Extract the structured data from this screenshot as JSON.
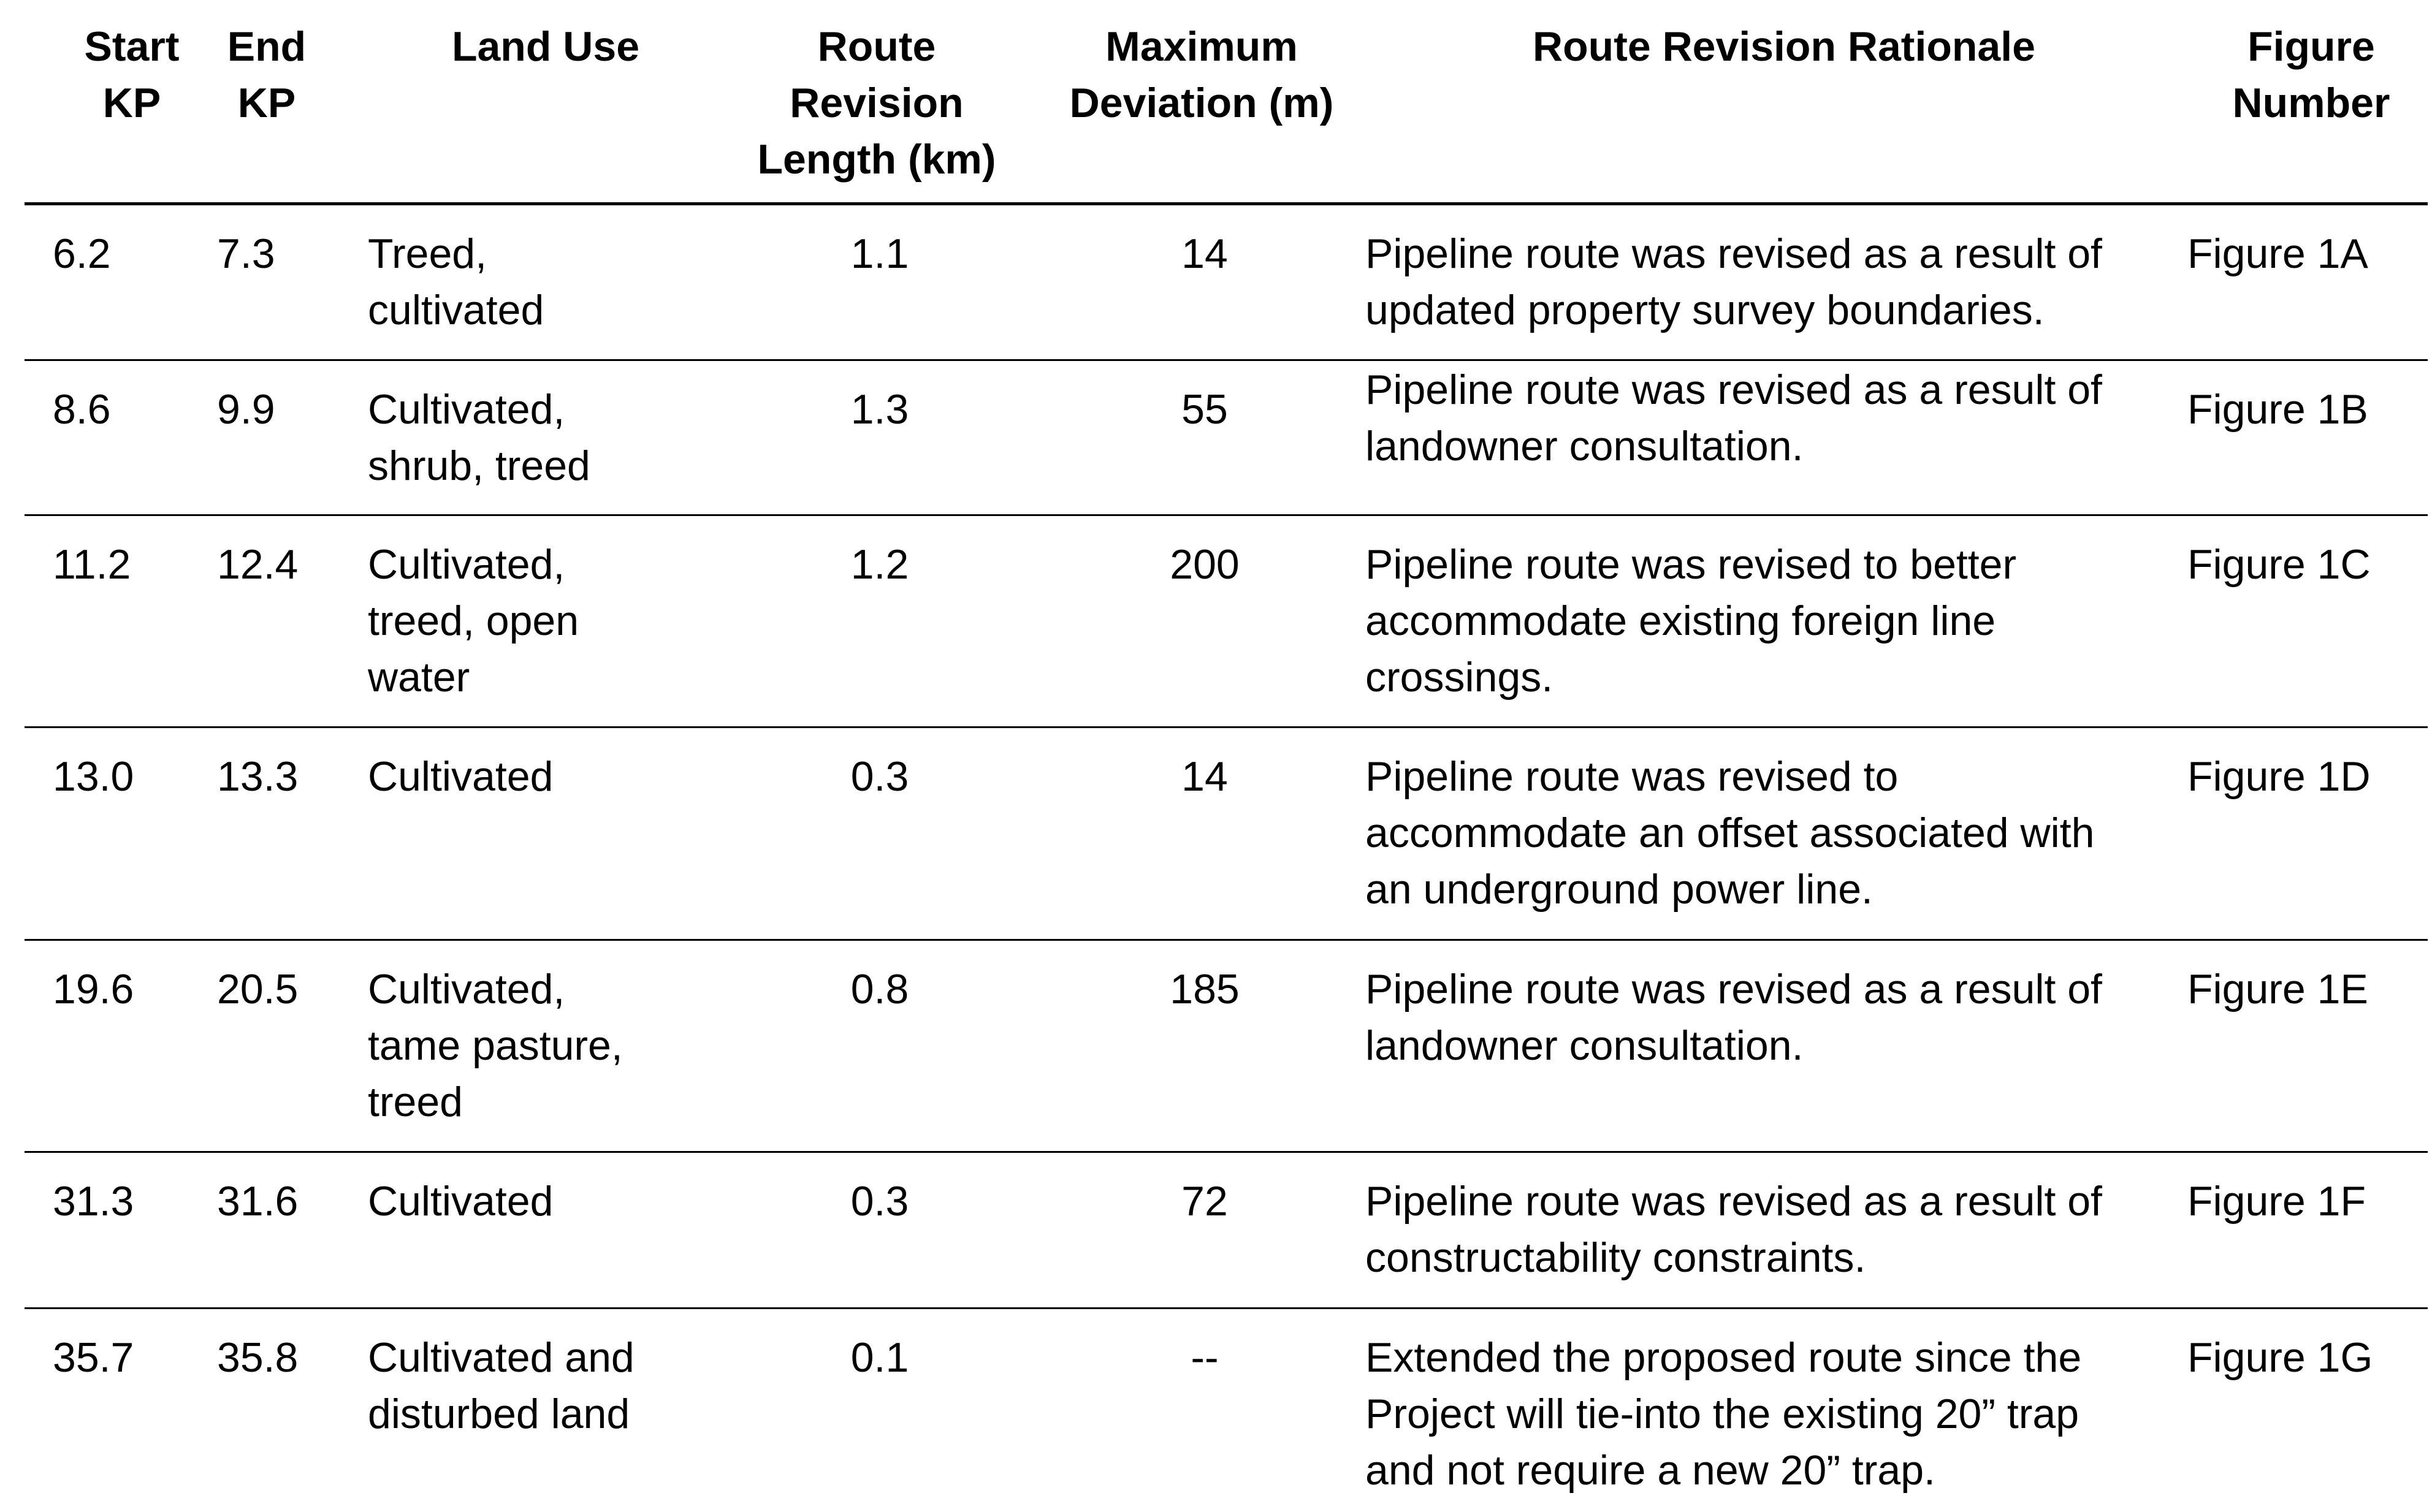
{
  "table": {
    "headers": {
      "start_kp": "Start\nKP",
      "end_kp": "End\nKP",
      "land_use": "Land Use",
      "route_revision_length": "Route\nRevision\nLength (km)",
      "maximum_deviation": "Maximum\nDeviation (m)",
      "rationale": "Route Revision Rationale",
      "figure_number": "Figure\nNumber"
    },
    "rows": [
      {
        "start_kp": "6.2",
        "end_kp": "7.3",
        "land_use": "Treed,\ncultivated",
        "length": "1.1",
        "deviation": "14",
        "rationale": "Pipeline route was revised as a result of\nupdated property survey boundaries.",
        "figure": "Figure 1A"
      },
      {
        "start_kp": "8.6",
        "end_kp": "9.9",
        "land_use": "Cultivated,\nshrub, treed",
        "length": "1.3",
        "deviation": "55",
        "rationale": "Pipeline route was revised as a result of\nlandowner consultation.",
        "figure": "Figure 1B"
      },
      {
        "start_kp": "11.2",
        "end_kp": "12.4",
        "land_use": "Cultivated,\ntreed, open\nwater",
        "length": "1.2",
        "deviation": "200",
        "rationale": "Pipeline route was revised to better\naccommodate existing foreign line\ncrossings.",
        "figure": "Figure 1C"
      },
      {
        "start_kp": "13.0",
        "end_kp": "13.3",
        "land_use": "Cultivated",
        "length": "0.3",
        "deviation": "14",
        "rationale": "Pipeline route was revised to\naccommodate an offset associated with\nan underground power line.",
        "figure": "Figure 1D"
      },
      {
        "start_kp": "19.6",
        "end_kp": "20.5",
        "land_use": "Cultivated,\ntame pasture,\ntreed",
        "length": "0.8",
        "deviation": "185",
        "rationale": "Pipeline route was revised as a result of\nlandowner consultation.",
        "figure": "Figure 1E"
      },
      {
        "start_kp": "31.3",
        "end_kp": "31.6",
        "land_use": "Cultivated",
        "length": "0.3",
        "deviation": "72",
        "rationale": "Pipeline route was revised as a result of\nconstructability constraints.",
        "figure": "Figure 1F"
      },
      {
        "start_kp": "35.7",
        "end_kp": "35.8",
        "land_use": "Cultivated and\ndisturbed land",
        "length": "0.1",
        "deviation": "--",
        "rationale": "Extended the proposed route since the\nProject will tie-into the existing 20” trap\nand not require a new 20” trap.",
        "figure": "Figure 1G"
      }
    ]
  }
}
